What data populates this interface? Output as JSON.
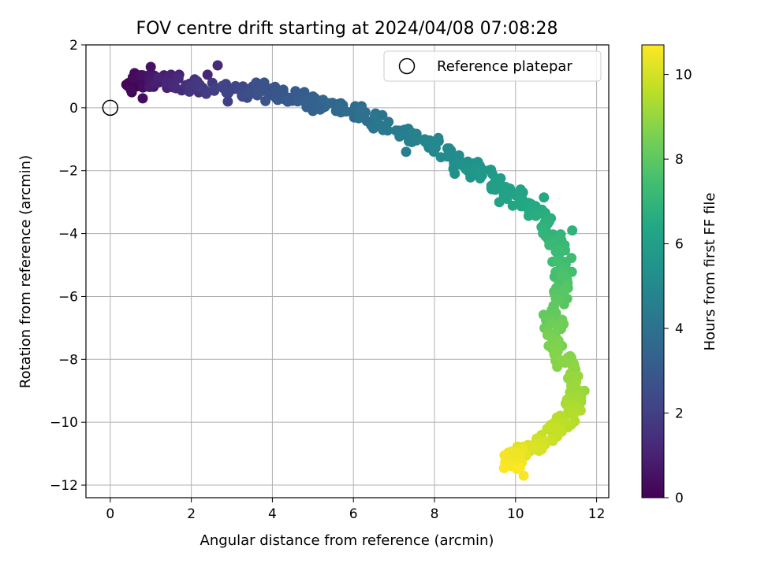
{
  "chart_data": {
    "type": "scatter",
    "title": "FOV centre drift starting at 2024/04/08 07:08:28",
    "xlabel": "Angular distance from reference (arcmin)",
    "ylabel": "Rotation from reference (arcmin)",
    "xlim": [
      -0.6,
      12.3
    ],
    "ylim": [
      -12.4,
      2.0
    ],
    "xticks": [
      "0",
      "2",
      "4",
      "6",
      "8",
      "10",
      "12"
    ],
    "yticks": [
      "2",
      "0",
      "−2",
      "−4",
      "−6",
      "−8",
      "−10",
      "−12"
    ],
    "xtick_values": [
      0,
      2,
      4,
      6,
      8,
      10,
      12
    ],
    "ytick_values": [
      2,
      0,
      -2,
      -4,
      -6,
      -8,
      -10,
      -12
    ],
    "grid": true,
    "legend": {
      "position": "top-right",
      "entries": [
        "Reference platepar"
      ]
    },
    "reference_point": {
      "x": 0,
      "y": 0
    },
    "colorbar": {
      "label": "Hours from first FF file",
      "colormap": "viridis",
      "range": [
        0,
        10.7
      ],
      "ticks": [
        "0",
        "2",
        "4",
        "6",
        "8",
        "10"
      ],
      "tick_values": [
        0,
        2,
        4,
        6,
        8,
        10
      ]
    },
    "path_points": [
      {
        "x": 0.45,
        "y": 0.7,
        "t": 0.0
      },
      {
        "x": 1.0,
        "y": 0.9,
        "t": 0.6
      },
      {
        "x": 1.6,
        "y": 0.8,
        "t": 1.2
      },
      {
        "x": 2.4,
        "y": 0.6,
        "t": 1.8
      },
      {
        "x": 3.2,
        "y": 0.55,
        "t": 2.3
      },
      {
        "x": 4.0,
        "y": 0.45,
        "t": 2.8
      },
      {
        "x": 4.8,
        "y": 0.25,
        "t": 3.2
      },
      {
        "x": 5.6,
        "y": 0.0,
        "t": 3.6
      },
      {
        "x": 6.4,
        "y": -0.3,
        "t": 4.0
      },
      {
        "x": 7.1,
        "y": -0.7,
        "t": 4.4
      },
      {
        "x": 7.8,
        "y": -1.1,
        "t": 4.8
      },
      {
        "x": 8.5,
        "y": -1.6,
        "t": 5.2
      },
      {
        "x": 9.1,
        "y": -2.1,
        "t": 5.6
      },
      {
        "x": 9.7,
        "y": -2.6,
        "t": 6.0
      },
      {
        "x": 10.2,
        "y": -3.0,
        "t": 6.3
      },
      {
        "x": 10.7,
        "y": -3.6,
        "t": 6.7
      },
      {
        "x": 11.0,
        "y": -4.3,
        "t": 7.1
      },
      {
        "x": 11.2,
        "y": -5.0,
        "t": 7.4
      },
      {
        "x": 11.1,
        "y": -5.8,
        "t": 7.8
      },
      {
        "x": 10.9,
        "y": -6.6,
        "t": 8.1
      },
      {
        "x": 11.0,
        "y": -7.4,
        "t": 8.5
      },
      {
        "x": 11.2,
        "y": -8.2,
        "t": 8.8
      },
      {
        "x": 11.4,
        "y": -9.0,
        "t": 9.1
      },
      {
        "x": 11.4,
        "y": -9.7,
        "t": 9.4
      },
      {
        "x": 11.0,
        "y": -10.3,
        "t": 9.7
      },
      {
        "x": 10.5,
        "y": -10.7,
        "t": 10.0
      },
      {
        "x": 10.0,
        "y": -11.0,
        "t": 10.3
      },
      {
        "x": 9.9,
        "y": -11.4,
        "t": 10.7
      }
    ],
    "extra_points": [
      {
        "x": 0.6,
        "y": 1.1,
        "t": 0.3
      },
      {
        "x": 0.8,
        "y": 0.3,
        "t": 0.4
      },
      {
        "x": 1.0,
        "y": 1.3,
        "t": 0.5
      },
      {
        "x": 1.5,
        "y": 1.05,
        "t": 0.9
      },
      {
        "x": 1.7,
        "y": 1.05,
        "t": 1.0
      },
      {
        "x": 2.4,
        "y": 1.05,
        "t": 1.1
      },
      {
        "x": 2.65,
        "y": 1.35,
        "t": 1.3
      },
      {
        "x": 2.9,
        "y": 0.2,
        "t": 2.0
      },
      {
        "x": 3.6,
        "y": 0.8,
        "t": 2.6
      },
      {
        "x": 3.8,
        "y": 0.8,
        "t": 2.7
      },
      {
        "x": 5.0,
        "y": -0.1,
        "t": 3.3
      },
      {
        "x": 6.2,
        "y": 0.05,
        "t": 3.7
      },
      {
        "x": 7.3,
        "y": -1.4,
        "t": 4.5
      },
      {
        "x": 8.0,
        "y": -1.3,
        "t": 4.9
      },
      {
        "x": 8.5,
        "y": -2.1,
        "t": 5.3
      },
      {
        "x": 9.6,
        "y": -3.0,
        "t": 6.1
      },
      {
        "x": 10.7,
        "y": -2.85,
        "t": 6.4
      },
      {
        "x": 11.4,
        "y": -3.9,
        "t": 6.9
      },
      {
        "x": 11.7,
        "y": -9.0,
        "t": 9.0
      },
      {
        "x": 10.2,
        "y": -11.7,
        "t": 10.6
      }
    ]
  }
}
